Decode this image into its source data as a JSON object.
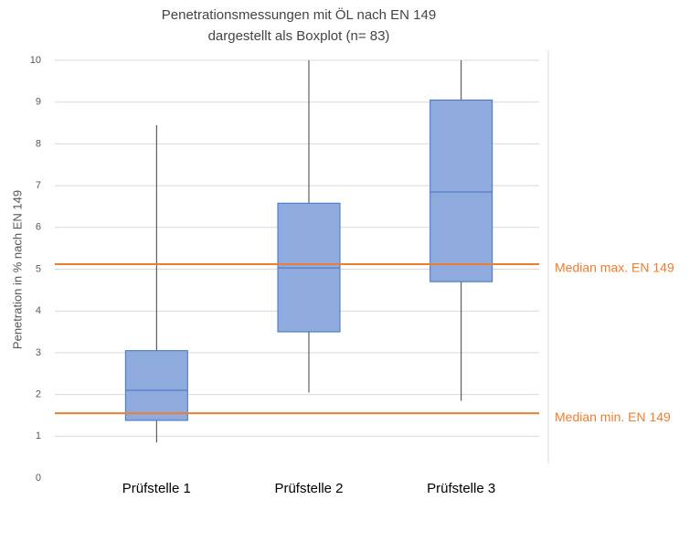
{
  "chart_data": {
    "type": "boxplot",
    "title": [
      "Penetrationsmessungen mit ÖL nach EN 149",
      "dargestellt als Boxplot  (n= 83)"
    ],
    "y_label": "Penetration in % nach EN 149",
    "categories": [
      "Prüfstelle 1",
      "Prüfstelle 2",
      "Prüfstelle 3"
    ],
    "whisker_low": [
      0.85,
      2.05,
      1.85
    ],
    "q1": [
      1.38,
      3.5,
      4.7
    ],
    "median": [
      2.1,
      5.03,
      6.85
    ],
    "q3": [
      3.05,
      6.58,
      9.05
    ],
    "whisker_high": [
      8.45,
      10,
      10
    ],
    "color": "#8faadc",
    "edge_color": "#4472c4",
    "ylim": [
      0,
      10
    ],
    "yticks": [
      0,
      1,
      2,
      3,
      4,
      5,
      6,
      7,
      8,
      9,
      10
    ],
    "grid": true,
    "reference_lines": [
      {
        "label": "Median max. EN 149",
        "value": 5.12,
        "color": "#ed7d31"
      },
      {
        "label": "Median min. EN 149",
        "value": 1.55,
        "color": "#ed7d31"
      }
    ]
  }
}
